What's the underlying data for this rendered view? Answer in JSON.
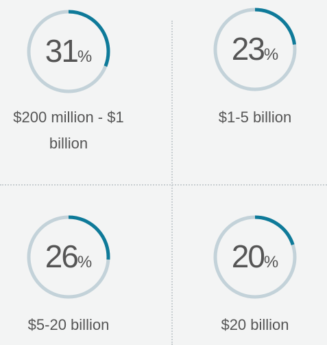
{
  "chart_data": [
    {
      "type": "donut",
      "title": "$200 million - $1 billion",
      "value": 31,
      "unit": "%",
      "color": "#0e7a99",
      "track_color": "#c3d2d9"
    },
    {
      "type": "donut",
      "title": "$1-5 billion",
      "value": 23,
      "unit": "%",
      "color": "#0e7a99",
      "track_color": "#c3d2d9"
    },
    {
      "type": "donut",
      "title": "$5-20 billion",
      "value": 26,
      "unit": "%",
      "color": "#0e7a99",
      "track_color": "#c3d2d9"
    },
    {
      "type": "donut",
      "title": "$20 billion",
      "value": 20,
      "unit": "%",
      "color": "#0e7a99",
      "track_color": "#c3d2d9"
    }
  ]
}
